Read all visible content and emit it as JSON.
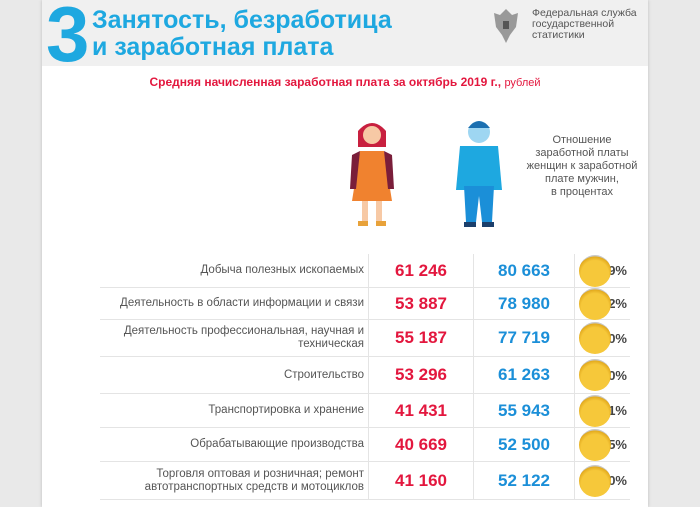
{
  "header": {
    "section_number": "3",
    "title_line1": "Занятость, безработица",
    "title_line2": "и заработная плата",
    "org_line1": "Федеральная служба",
    "org_line2": "государственной",
    "org_line3": "статистики"
  },
  "subtitle": {
    "main": "Средняя начисленная заработная плата за октябрь 2019 г.,",
    "unit": "рублей"
  },
  "ratio_header": [
    "Отношение",
    "заработной платы",
    "женщин к заработной",
    "плате мужчин,",
    "в процентах"
  ],
  "colors": {
    "women": "#e3173e",
    "men": "#1b8fd8",
    "accent": "#1ea8e0"
  },
  "rows": [
    {
      "label": "Добыча полезных ископаемых",
      "women": "61 246",
      "men": "80 663",
      "ratio": "75,9%"
    },
    {
      "label": "Деятельность в области информации и связи",
      "women": "53 887",
      "men": "78 980",
      "ratio": "68,2%"
    },
    {
      "label": "Деятельность профессиональная, научная и техническая",
      "women": "55 187",
      "men": "77 719",
      "ratio": "71,0%"
    },
    {
      "label": "Строительство",
      "women": "53 296",
      "men": "61 263",
      "ratio": "87,0%"
    },
    {
      "label": "Транспортировка и хранение",
      "women": "41 431",
      "men": "55 943",
      "ratio": "74,1%"
    },
    {
      "label": "Обрабатывающие производства",
      "women": "40 669",
      "men": "52 500",
      "ratio": "77,5%"
    },
    {
      "label": "Торговля оптовая и розничная; ремонт автотранспортных средств и мотоциклов",
      "women": "41 160",
      "men": "52 122",
      "ratio": "79,0%"
    }
  ]
}
